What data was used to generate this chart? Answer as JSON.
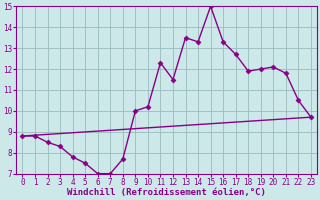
{
  "title": "",
  "xlabel": "Windchill (Refroidissement éolien,°C)",
  "ylabel": "",
  "bg_color": "#cce8e8",
  "line_color": "#880088",
  "marker": "D",
  "markersize": 2.5,
  "linewidth": 1.0,
  "xlim": [
    -0.5,
    23.5
  ],
  "ylim": [
    7,
    15
  ],
  "xticks": [
    0,
    1,
    2,
    3,
    4,
    5,
    6,
    7,
    8,
    9,
    10,
    11,
    12,
    13,
    14,
    15,
    16,
    17,
    18,
    19,
    20,
    21,
    22,
    23
  ],
  "yticks": [
    7,
    8,
    9,
    10,
    11,
    12,
    13,
    14,
    15
  ],
  "grid_color": "#99bbbb",
  "xlabel_fontsize": 6.5,
  "tick_fontsize": 5.5,
  "series1_x": [
    0,
    1,
    2,
    3,
    4,
    5,
    6,
    7,
    8,
    9,
    10,
    11,
    12,
    13,
    14,
    15,
    16,
    17,
    18,
    19,
    20,
    21,
    22,
    23
  ],
  "series1_y": [
    8.8,
    8.8,
    8.5,
    8.3,
    7.8,
    7.5,
    7.0,
    7.0,
    7.7,
    10.0,
    10.2,
    12.3,
    11.5,
    13.5,
    13.3,
    15.0,
    13.3,
    12.7,
    11.9,
    12.0,
    12.1,
    11.8,
    10.5,
    9.7
  ],
  "series2_x": [
    0,
    23
  ],
  "series2_y": [
    8.8,
    9.7
  ]
}
